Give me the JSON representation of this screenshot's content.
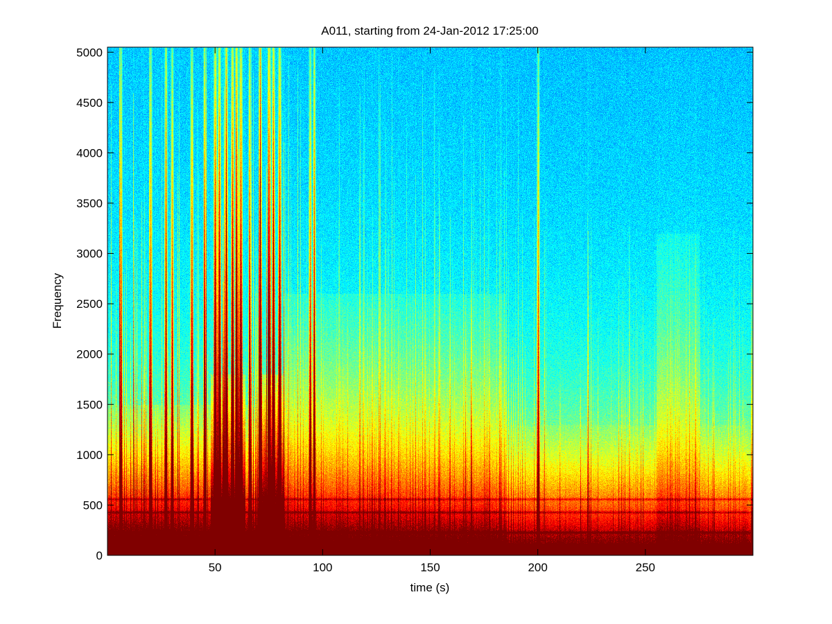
{
  "chart_data": {
    "type": "heatmap",
    "title": "A011, starting from 24-Jan-2012 17:25:00",
    "xlabel": "time (s)",
    "ylabel": "Frequency",
    "xlim": [
      0,
      300
    ],
    "ylim": [
      0,
      5050
    ],
    "x_ticks": [
      50,
      100,
      150,
      200,
      250
    ],
    "y_ticks": [
      0,
      500,
      1000,
      1500,
      2000,
      2500,
      3000,
      3500,
      4000,
      4500,
      5000
    ],
    "colormap": "jet",
    "colorbar": false,
    "grid": false,
    "low_freq_bands_hz": [
      30,
      60,
      230,
      430,
      560
    ],
    "strong_broadband_events_s": [
      6,
      20,
      27,
      30,
      39,
      45,
      50,
      52,
      55,
      58,
      60,
      62,
      66,
      71,
      75,
      77,
      80,
      94,
      96,
      200
    ],
    "description_regions": [
      {
        "t_start": 0,
        "t_end": 82,
        "note": "frequent intense broadband transients, red up to ~1600 Hz"
      },
      {
        "t_start": 82,
        "t_end": 185,
        "note": "elevated energy, yellow/green up to ~3000 Hz"
      },
      {
        "t_start": 185,
        "t_end": 300,
        "note": "lower energy, many faint vertical streaks up to ~3200 Hz"
      }
    ]
  }
}
